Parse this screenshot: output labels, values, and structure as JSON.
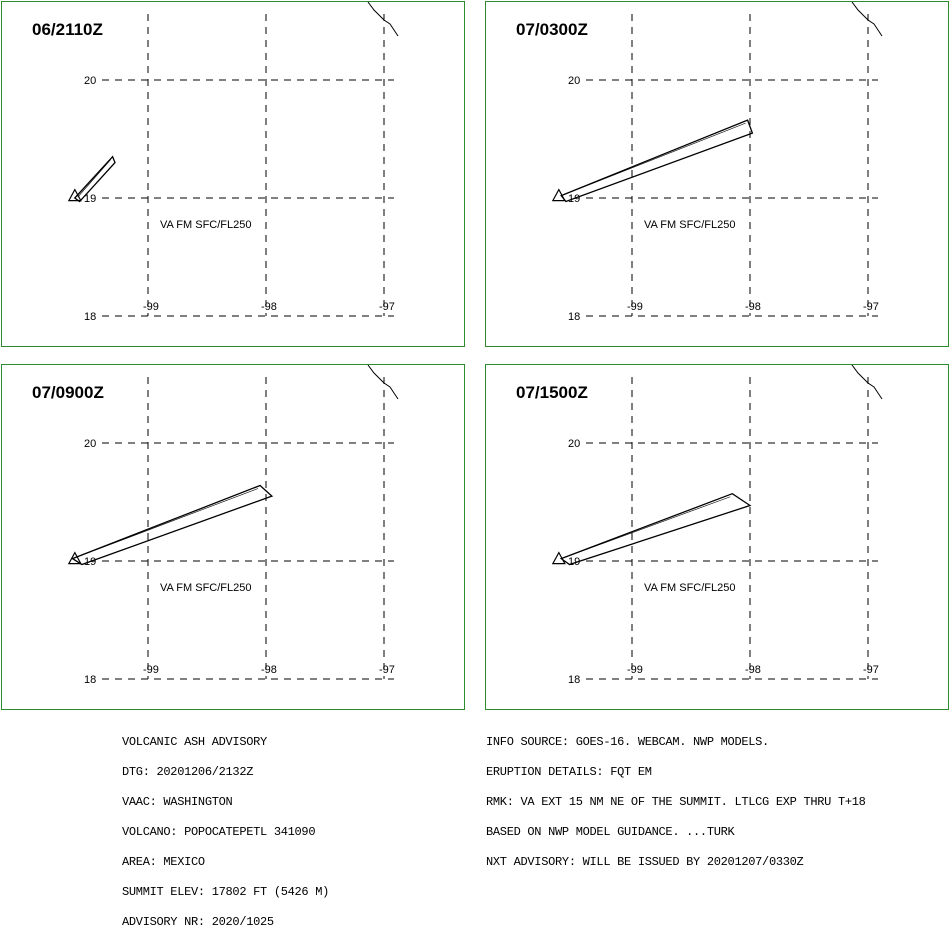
{
  "panels": [
    {
      "time": "06/2110Z",
      "label": "VA FM SFC/FL250",
      "polygon": [
        [
          -99.62,
          19.0
        ],
        [
          -99.3,
          19.35
        ],
        [
          -99.28,
          19.3
        ],
        [
          -99.58,
          18.97
        ]
      ]
    },
    {
      "time": "07/0300Z",
      "label": "VA FM SFC/FL250",
      "polygon": [
        [
          -99.6,
          19.02
        ],
        [
          -98.02,
          19.66
        ],
        [
          -97.98,
          19.55
        ],
        [
          -99.56,
          18.97
        ]
      ]
    },
    {
      "time": "07/0900Z",
      "label": "VA FM SFC/FL250",
      "polygon": [
        [
          -99.64,
          19.02
        ],
        [
          -98.05,
          19.64
        ],
        [
          -97.95,
          19.55
        ],
        [
          -99.56,
          18.97
        ]
      ]
    },
    {
      "time": "07/1500Z",
      "label": "VA FM SFC/FL250",
      "polygon": [
        [
          -99.6,
          19.02
        ],
        [
          -98.15,
          19.57
        ],
        [
          -98.0,
          19.47
        ],
        [
          -99.53,
          18.97
        ]
      ]
    }
  ],
  "axes": {
    "lat_ticks": [
      "20",
      "19",
      "18"
    ],
    "lon_ticks": [
      "-99",
      "-98",
      "-97"
    ],
    "lat_values": [
      20,
      19,
      18
    ],
    "lon_values": [
      -99,
      -98,
      -97
    ]
  },
  "volcano": {
    "lon": -99.62,
    "lat": 19.02
  },
  "advisory_left": [
    "VOLCANIC ASH ADVISORY",
    "DTG: 20201206/2132Z",
    "VAAC: WASHINGTON",
    "VOLCANO: POPOCATEPETL 341090",
    "AREA: MEXICO",
    "SUMMIT ELEV: 17802 FT (5426 M)",
    "ADVISORY NR: 2020/1025"
  ],
  "advisory_right": [
    "INFO SOURCE: GOES-16. WEBCAM. NWP MODELS.",
    "ERUPTION DETAILS: FQT EM",
    "RMK: VA EXT 15 NM NE OF THE SUMMIT. LTLCG EXP THRU T+18",
    "BASED ON NWP MODEL GUIDANCE. ...TURK",
    "NXT ADVISORY: WILL BE ISSUED BY 20201207/0330Z"
  ]
}
